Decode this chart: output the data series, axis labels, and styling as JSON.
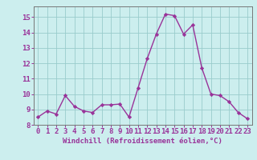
{
  "x": [
    0,
    1,
    2,
    3,
    4,
    5,
    6,
    7,
    8,
    9,
    10,
    11,
    12,
    13,
    14,
    15,
    16,
    17,
    18,
    19,
    20,
    21,
    22,
    23
  ],
  "y": [
    8.5,
    8.9,
    8.7,
    9.9,
    9.2,
    8.9,
    8.8,
    9.3,
    9.3,
    9.35,
    8.5,
    10.4,
    12.3,
    13.9,
    15.2,
    15.1,
    13.9,
    14.5,
    11.7,
    10.0,
    9.9,
    9.5,
    8.8,
    8.4
  ],
  "line_color": "#993399",
  "marker": "D",
  "marker_size": 2.2,
  "line_width": 1.0,
  "xlabel": "Windchill (Refroidissement éolien,°C)",
  "xlabel_fontsize": 6.5,
  "ylim": [
    8,
    15.7
  ],
  "xlim": [
    -0.5,
    23.5
  ],
  "yticks": [
    8,
    9,
    10,
    11,
    12,
    13,
    14,
    15
  ],
  "xticks": [
    0,
    1,
    2,
    3,
    4,
    5,
    6,
    7,
    8,
    9,
    10,
    11,
    12,
    13,
    14,
    15,
    16,
    17,
    18,
    19,
    20,
    21,
    22,
    23
  ],
  "tick_fontsize": 6.5,
  "background_color": "#cceeee",
  "grid_color": "#99cccc",
  "spine_color": "#777777"
}
